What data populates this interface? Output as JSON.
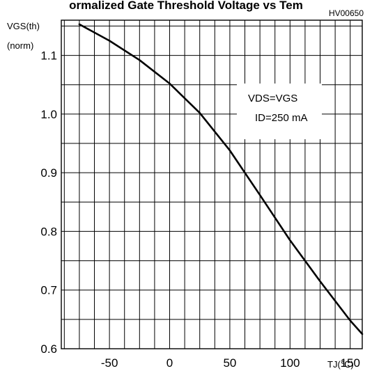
{
  "chart_data": {
    "type": "line",
    "title": "ormalized Gate Threshold Voltage vs Tem",
    "code": "HV00650",
    "ylabel_line1": "VGS(th)",
    "ylabel_line2": "(norm)",
    "xlabel": "TJ(℃)",
    "xlim": [
      -90,
      160
    ],
    "ylim": [
      0.6,
      1.16
    ],
    "x_ticks": [
      -50,
      0,
      50,
      100,
      150
    ],
    "x_tick_labels": [
      "-50",
      "0",
      "50",
      "100",
      "150"
    ],
    "y_ticks": [
      0.6,
      0.7,
      0.8,
      0.9,
      1.0,
      1.1
    ],
    "y_tick_labels": [
      "0.6",
      "0.7",
      "0.8",
      "0.9",
      "1.0",
      "1.1"
    ],
    "grid": true,
    "annotation": [
      "VDS=VGS",
      "ID=250 mA"
    ],
    "series": [
      {
        "x": [
          -75,
          -50,
          -25,
          0,
          25,
          50,
          75,
          100,
          125,
          150,
          160
        ],
        "y": [
          1.153,
          1.125,
          1.092,
          1.052,
          1.002,
          0.938,
          0.862,
          0.785,
          0.715,
          0.648,
          0.625
        ]
      }
    ]
  }
}
